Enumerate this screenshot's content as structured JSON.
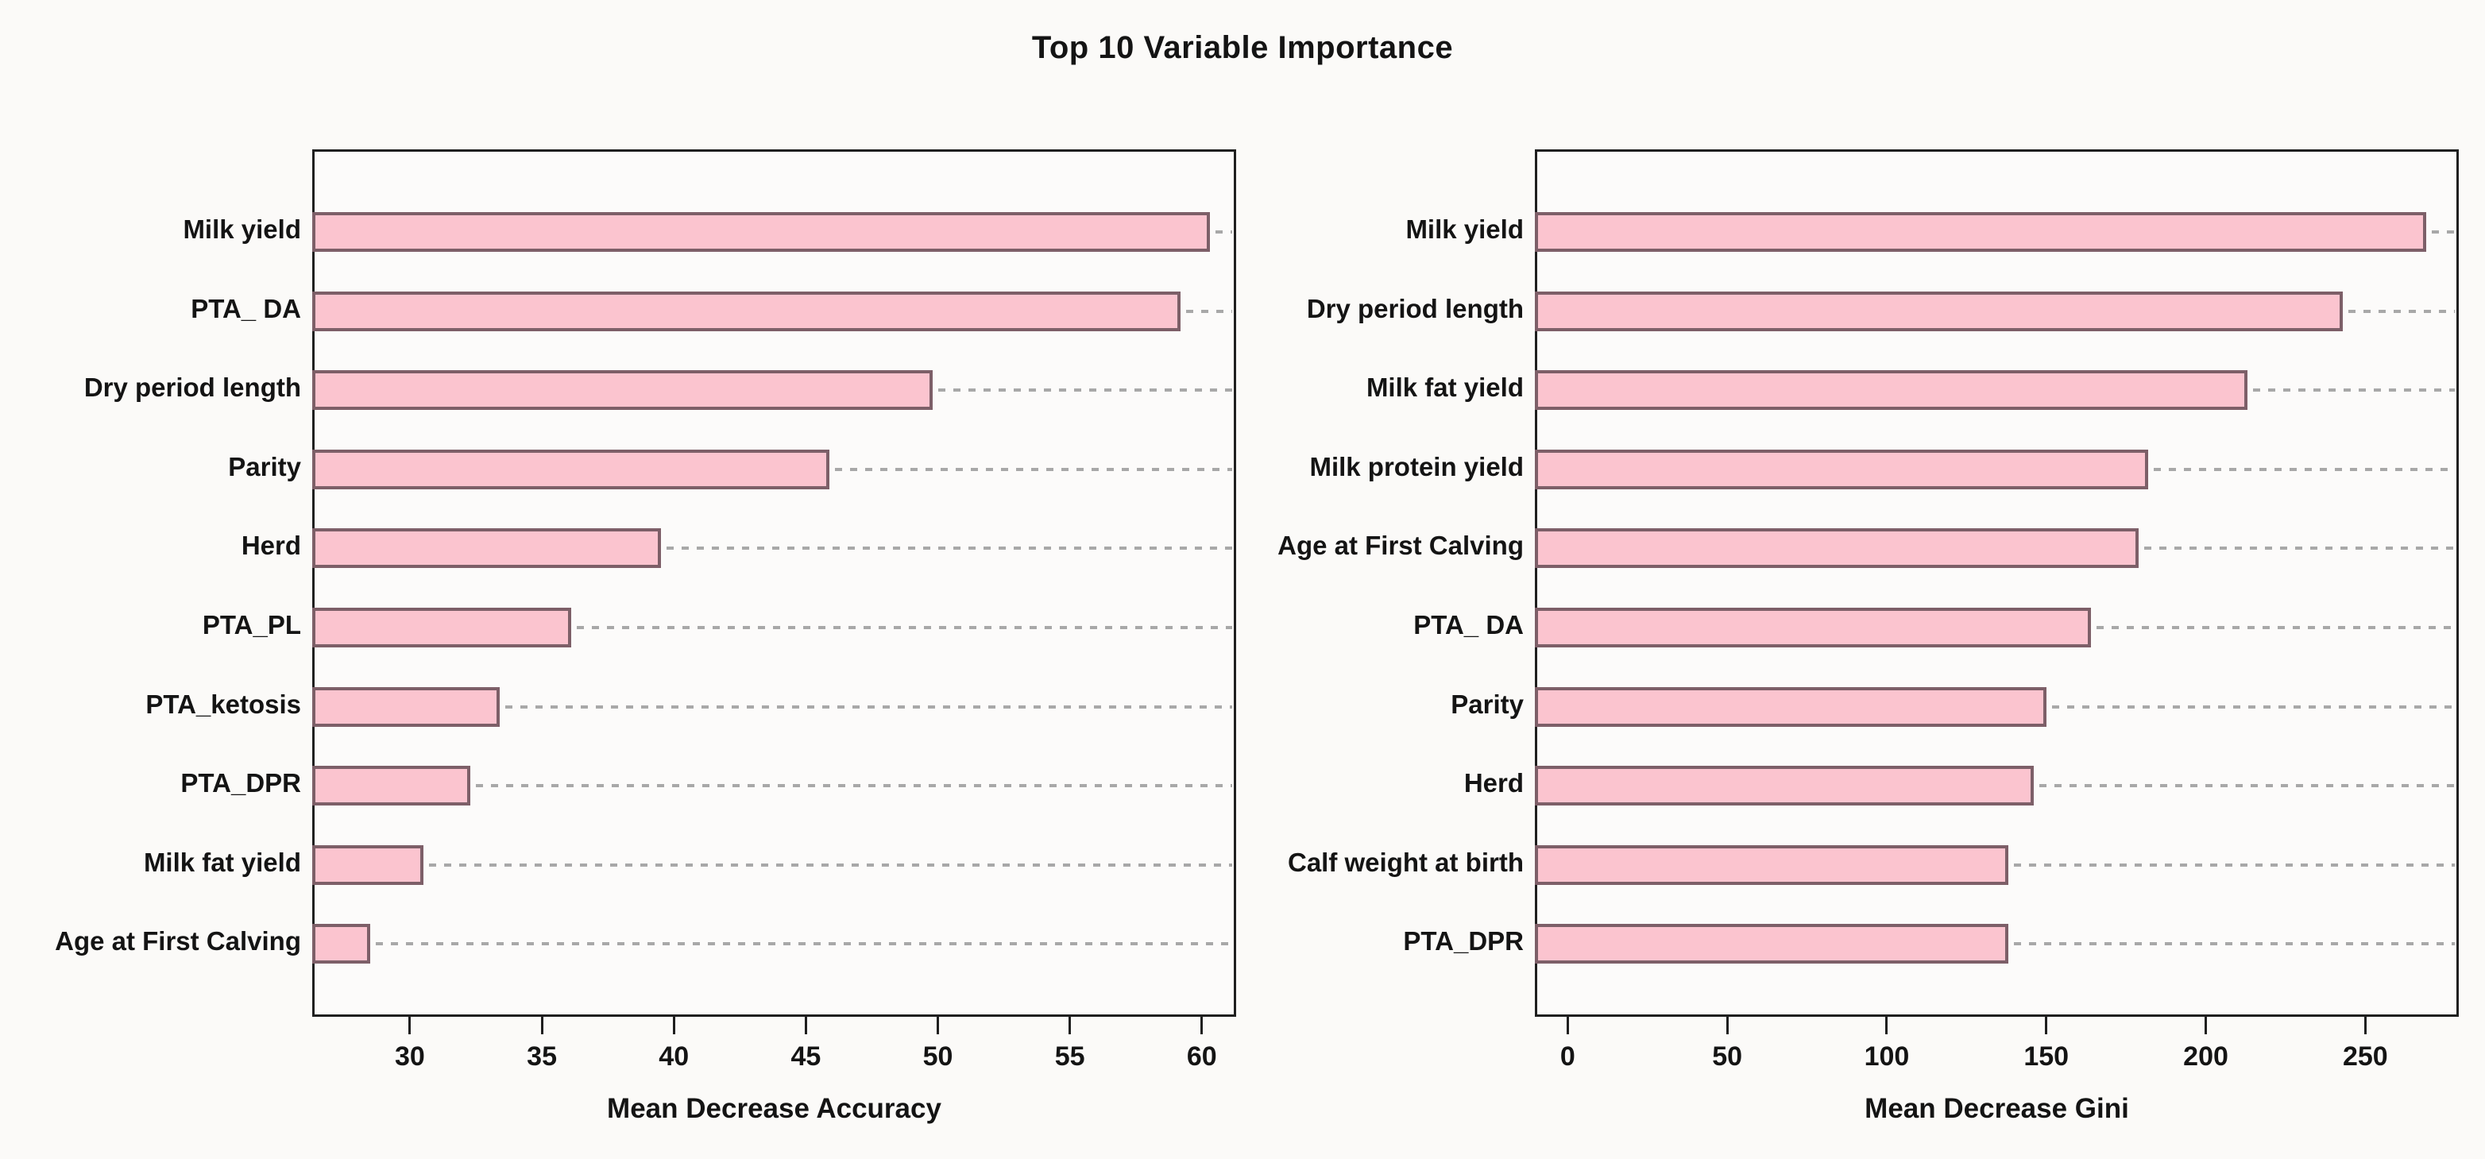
{
  "title": "Top 10 Variable Importance",
  "colors": {
    "bar_fill": "#FBC4CF",
    "bar_border": "#7D5F68",
    "leader_line": "#A8A8A8",
    "axis": "#1F1F1F",
    "background": "#FBFAF8"
  },
  "chart_data": [
    {
      "type": "bar",
      "orientation": "horizontal",
      "xlabel": "Mean Decrease Accuracy",
      "categories": [
        "Milk yield",
        "PTA_ DA",
        "Dry period length",
        "Parity",
        "Herd",
        "PTA_PL",
        "PTA_ketosis",
        "PTA_DPR",
        "Milk fat yield",
        "Age at First Calving"
      ],
      "values": [
        60.3,
        59.2,
        49.8,
        45.9,
        39.5,
        36.1,
        33.4,
        32.3,
        30.5,
        28.5
      ],
      "xlim": [
        26.3,
        61.3
      ],
      "xticks": [
        30,
        35,
        40,
        45,
        50,
        55,
        60
      ],
      "grid": false,
      "leader_lines": true,
      "legend": "none"
    },
    {
      "type": "bar",
      "orientation": "horizontal",
      "xlabel": "Mean Decrease Gini",
      "categories": [
        "Milk yield",
        "Dry period length",
        "Milk fat yield",
        "Milk protein yield",
        "Age at First Calving",
        "PTA_ DA",
        "Parity",
        "Herd",
        "Calf weight at birth",
        "PTA_DPR"
      ],
      "values": [
        269,
        243,
        213,
        182,
        179,
        164,
        150,
        146,
        138,
        138
      ],
      "xlim": [
        -10.3,
        279.3
      ],
      "xticks": [
        0,
        50,
        100,
        150,
        200,
        250
      ],
      "grid": false,
      "leader_lines": true,
      "legend": "none"
    }
  ]
}
